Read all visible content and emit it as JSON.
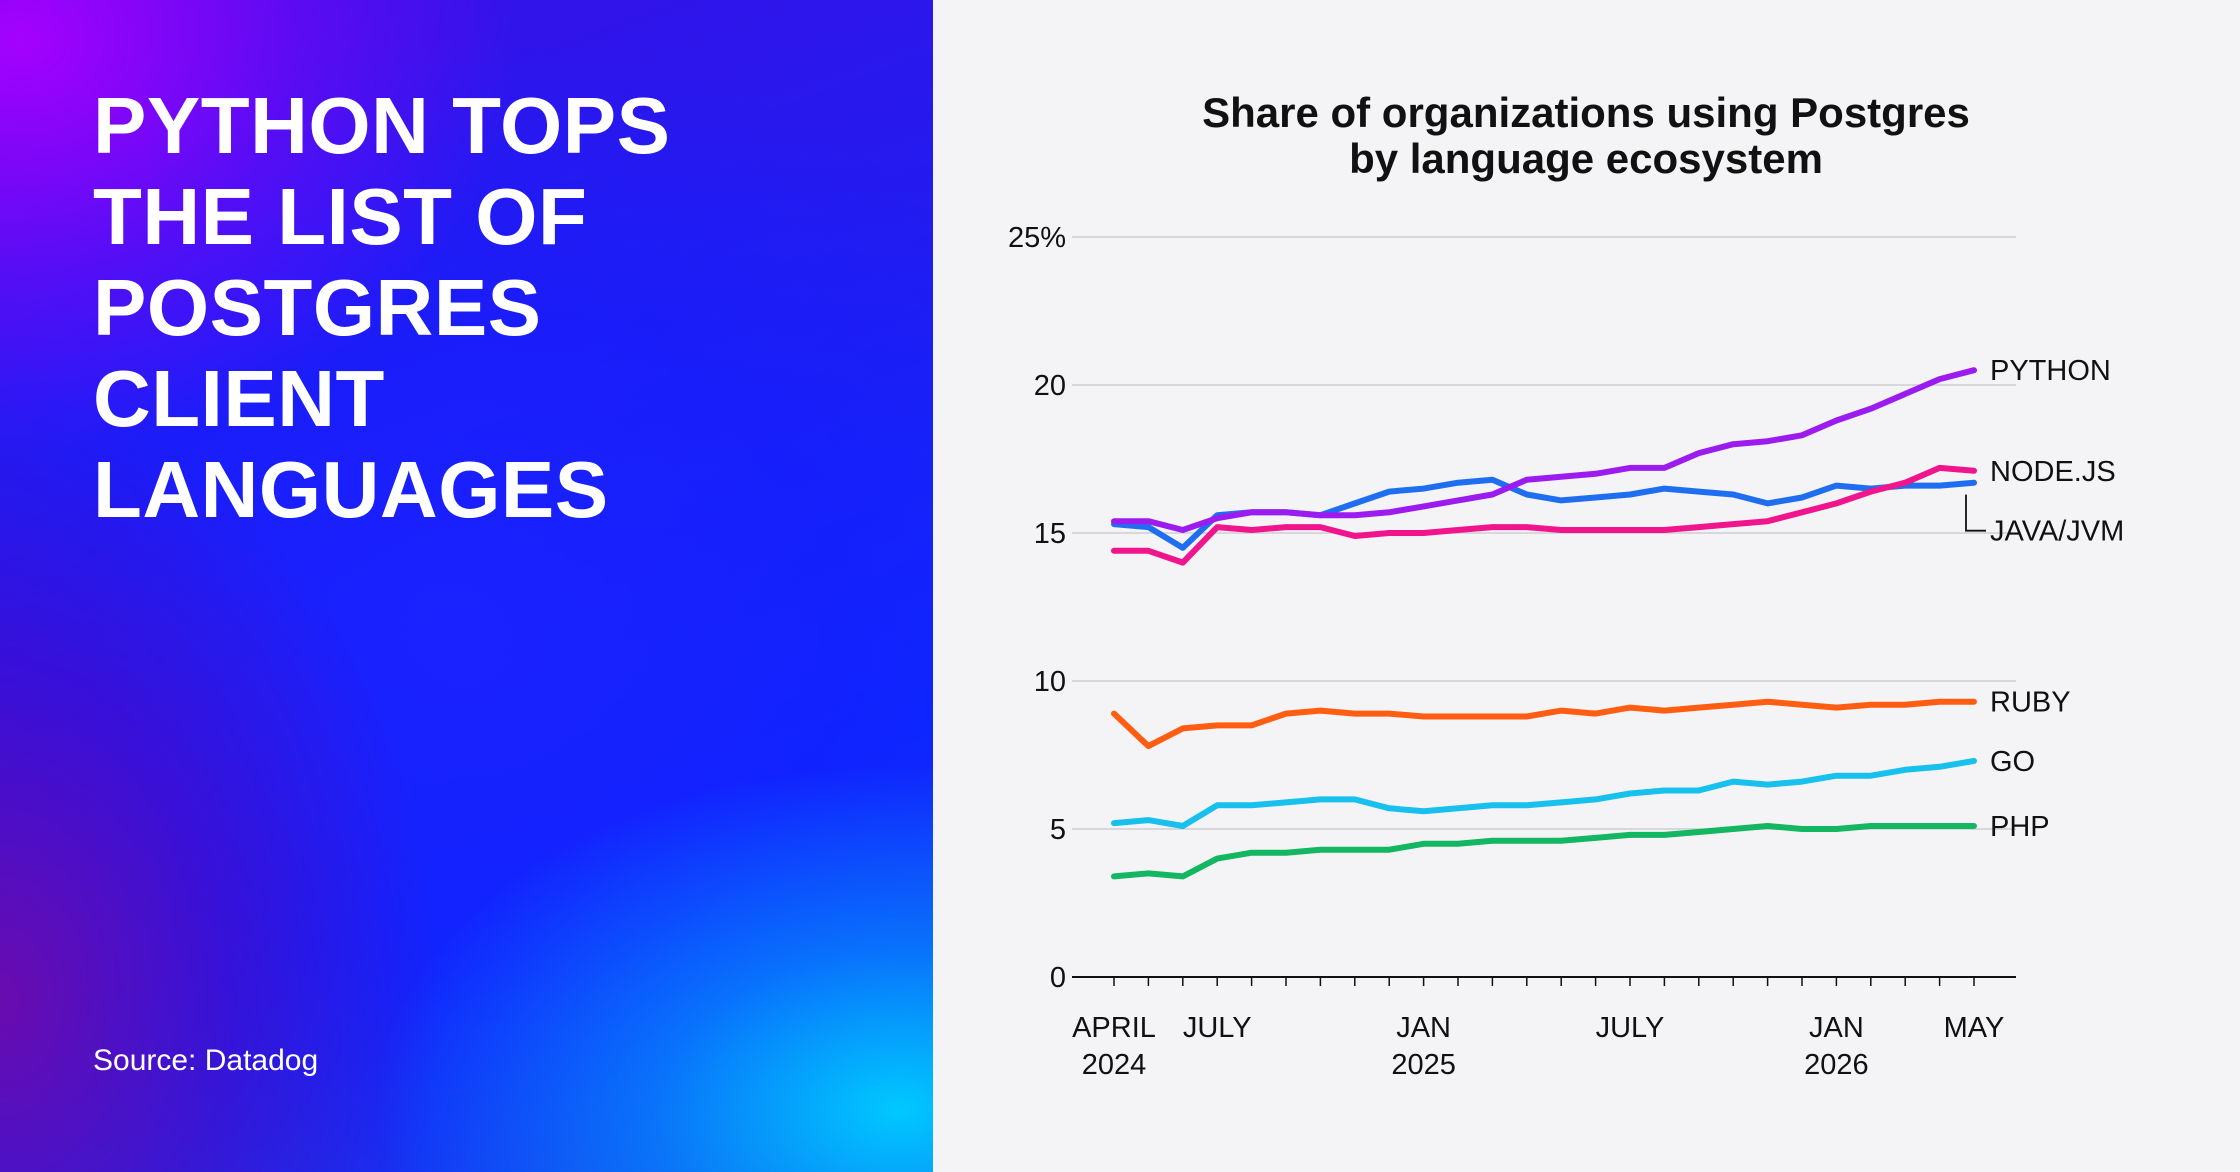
{
  "headline": "PYTHON TOPS THE LIST OF POSTGRES CLIENT LANGUAGES",
  "source": "Source: Datadog",
  "colors": {
    "python": "#9c1cf0",
    "nodejs": "#f0158c",
    "java": "#1f6ef0",
    "ruby": "#ff5e12",
    "go": "#18c0ee",
    "php": "#13b661",
    "gridline": "#cfcfd4",
    "axis": "#111111"
  },
  "chart_data": {
    "type": "line",
    "title_line1": "Share of organizations using Postgres",
    "title_line2": "by language ecosystem",
    "ylim": [
      0,
      25
    ],
    "y_ticks": [
      {
        "value": 25,
        "label": "25%"
      },
      {
        "value": 20,
        "label": "20"
      },
      {
        "value": 15,
        "label": "15"
      },
      {
        "value": 10,
        "label": "10"
      },
      {
        "value": 5,
        "label": "5"
      },
      {
        "value": 0,
        "label": "0"
      }
    ],
    "x": [
      "2024-04",
      "2024-05",
      "2024-06",
      "2024-07",
      "2024-08",
      "2024-09",
      "2024-10",
      "2024-11",
      "2024-12",
      "2025-01",
      "2025-02",
      "2025-03",
      "2025-04",
      "2025-05",
      "2025-06",
      "2025-07",
      "2025-08",
      "2025-09",
      "2025-10",
      "2025-11",
      "2025-12",
      "2026-01",
      "2026-02",
      "2026-03",
      "2026-04",
      "2026-05"
    ],
    "x_labels": [
      {
        "index": 0,
        "line1": "APRIL",
        "line2": "2024"
      },
      {
        "index": 3,
        "line1": "JULY",
        "line2": ""
      },
      {
        "index": 9,
        "line1": "JAN",
        "line2": "2025"
      },
      {
        "index": 15,
        "line1": "JULY",
        "line2": ""
      },
      {
        "index": 21,
        "line1": "JAN",
        "line2": "2026"
      },
      {
        "index": 25,
        "line1": "MAY",
        "line2": ""
      }
    ],
    "grid": true,
    "legend": "direct labels at line ends",
    "series": [
      {
        "name": "PYTHON",
        "color_key": "python",
        "values": [
          15.4,
          15.4,
          15.1,
          15.5,
          15.7,
          15.7,
          15.6,
          15.6,
          15.7,
          15.9,
          16.1,
          16.3,
          16.8,
          16.9,
          17.0,
          17.2,
          17.2,
          17.7,
          18.0,
          18.1,
          18.3,
          18.8,
          19.2,
          19.7,
          20.2,
          20.5
        ]
      },
      {
        "name": "NODE.JS",
        "color_key": "nodejs",
        "values": [
          14.4,
          14.4,
          14.0,
          15.2,
          15.1,
          15.2,
          15.2,
          14.9,
          15.0,
          15.0,
          15.1,
          15.2,
          15.2,
          15.1,
          15.1,
          15.1,
          15.1,
          15.2,
          15.3,
          15.4,
          15.7,
          16.0,
          16.4,
          16.7,
          17.2,
          17.1
        ]
      },
      {
        "name": "JAVA/JVM",
        "color_key": "java",
        "values": [
          15.3,
          15.2,
          14.5,
          15.6,
          15.7,
          15.7,
          15.6,
          16.0,
          16.4,
          16.5,
          16.7,
          16.8,
          16.3,
          16.1,
          16.2,
          16.3,
          16.5,
          16.4,
          16.3,
          16.0,
          16.2,
          16.6,
          16.5,
          16.6,
          16.6,
          16.7
        ]
      },
      {
        "name": "RUBY",
        "color_key": "ruby",
        "values": [
          8.9,
          7.8,
          8.4,
          8.5,
          8.5,
          8.9,
          9.0,
          8.9,
          8.9,
          8.8,
          8.8,
          8.8,
          8.8,
          9.0,
          8.9,
          9.1,
          9.0,
          9.1,
          9.2,
          9.3,
          9.2,
          9.1,
          9.2,
          9.2,
          9.3,
          9.3
        ]
      },
      {
        "name": "GO",
        "color_key": "go",
        "values": [
          5.2,
          5.3,
          5.1,
          5.8,
          5.8,
          5.9,
          6.0,
          6.0,
          5.7,
          5.6,
          5.7,
          5.8,
          5.8,
          5.9,
          6.0,
          6.2,
          6.3,
          6.3,
          6.6,
          6.5,
          6.6,
          6.8,
          6.8,
          7.0,
          7.1,
          7.3
        ]
      },
      {
        "name": "PHP",
        "color_key": "php",
        "values": [
          3.4,
          3.5,
          3.4,
          4.0,
          4.2,
          4.2,
          4.3,
          4.3,
          4.3,
          4.5,
          4.5,
          4.6,
          4.6,
          4.6,
          4.7,
          4.8,
          4.8,
          4.9,
          5.0,
          5.1,
          5.0,
          5.0,
          5.1,
          5.1,
          5.1,
          5.1
        ]
      }
    ]
  }
}
